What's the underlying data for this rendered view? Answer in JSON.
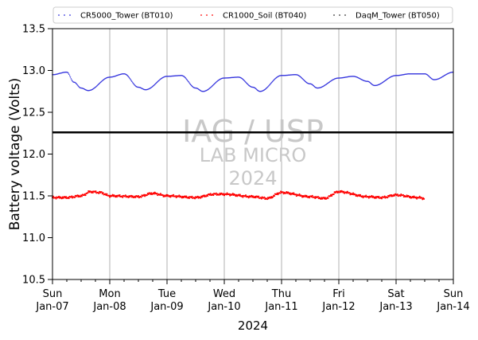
{
  "chart_data": {
    "type": "scatter",
    "xlabel": "2024",
    "ylabel": "Battery voltage (Volts)",
    "xlim": [
      "2024-01-07",
      "2024-01-14"
    ],
    "ylim": [
      10.5,
      13.5
    ],
    "grid": "vertical",
    "legend_position": "top",
    "x_ticks": [
      {
        "date": "2024-01-07",
        "day": "Sun",
        "date_label": "Jan-07"
      },
      {
        "date": "2024-01-08",
        "day": "Mon",
        "date_label": "Jan-08"
      },
      {
        "date": "2024-01-09",
        "day": "Tue",
        "date_label": "Jan-09"
      },
      {
        "date": "2024-01-10",
        "day": "Wed",
        "date_label": "Jan-10"
      },
      {
        "date": "2024-01-11",
        "day": "Thu",
        "date_label": "Jan-11"
      },
      {
        "date": "2024-01-12",
        "day": "Fri",
        "date_label": "Jan-12"
      },
      {
        "date": "2024-01-13",
        "day": "Sat",
        "date_label": "Jan-13"
      },
      {
        "date": "2024-01-14",
        "day": "Sun",
        "date_label": "Jan-14"
      }
    ],
    "y_ticks": [
      "10.5",
      "11.0",
      "11.5",
      "12.0",
      "12.5",
      "13.0",
      "13.5"
    ],
    "reference_line": {
      "y": 12.26,
      "color": "#000000"
    },
    "watermark": [
      "IAG / USP",
      "LAB MICRO",
      "2024"
    ],
    "series": [
      {
        "name": "CR5000_Tower (BT010)",
        "color": "#3333dd",
        "x": [
          "2024-01-07 00:00",
          "2024-01-07 06:00",
          "2024-01-07 09:00",
          "2024-01-07 12:00",
          "2024-01-07 15:00",
          "2024-01-08 00:00",
          "2024-01-08 06:00",
          "2024-01-08 12:00",
          "2024-01-08 15:00",
          "2024-01-09 00:00",
          "2024-01-09 06:00",
          "2024-01-09 12:00",
          "2024-01-09 15:00",
          "2024-01-10 00:00",
          "2024-01-10 06:00",
          "2024-01-10 12:00",
          "2024-01-10 15:00",
          "2024-01-11 00:00",
          "2024-01-11 06:00",
          "2024-01-11 12:00",
          "2024-01-11 15:00",
          "2024-01-12 00:00",
          "2024-01-12 06:00",
          "2024-01-12 12:00",
          "2024-01-12 15:00",
          "2024-01-13 00:00",
          "2024-01-13 06:00",
          "2024-01-13 12:00",
          "2024-01-13 16:00",
          "2024-01-14 00:00"
        ],
        "y": [
          12.95,
          12.98,
          12.86,
          12.79,
          12.76,
          12.92,
          12.96,
          12.8,
          12.77,
          12.93,
          12.94,
          12.79,
          12.75,
          12.91,
          12.92,
          12.8,
          12.75,
          12.94,
          12.95,
          12.84,
          12.79,
          12.91,
          12.93,
          12.87,
          12.82,
          12.94,
          12.96,
          12.96,
          12.89,
          12.98
        ]
      },
      {
        "name": "CR1000_Soil (BT040)",
        "color": "#ff0000",
        "x": [
          "2024-01-07 00:00",
          "2024-01-07 06:00",
          "2024-01-07 12:00",
          "2024-01-07 16:00",
          "2024-01-07 20:00",
          "2024-01-08 00:00",
          "2024-01-08 12:00",
          "2024-01-08 18:00",
          "2024-01-09 00:00",
          "2024-01-09 12:00",
          "2024-01-09 20:00",
          "2024-01-10 00:00",
          "2024-01-10 12:00",
          "2024-01-10 18:00",
          "2024-01-11 00:00",
          "2024-01-11 12:00",
          "2024-01-11 18:00",
          "2024-01-12 00:00",
          "2024-01-12 12:00",
          "2024-01-12 18:00",
          "2024-01-13 00:00",
          "2024-01-13 09:00",
          "2024-01-13 12:00"
        ],
        "y": [
          11.48,
          11.48,
          11.5,
          11.55,
          11.54,
          11.5,
          11.49,
          11.53,
          11.5,
          11.48,
          11.52,
          11.52,
          11.49,
          11.47,
          11.54,
          11.49,
          11.47,
          11.55,
          11.49,
          11.48,
          11.51,
          11.48,
          11.47
        ]
      },
      {
        "name": "DaqM_Tower (BT050)",
        "color": "#333333",
        "x": [],
        "y": []
      }
    ]
  }
}
